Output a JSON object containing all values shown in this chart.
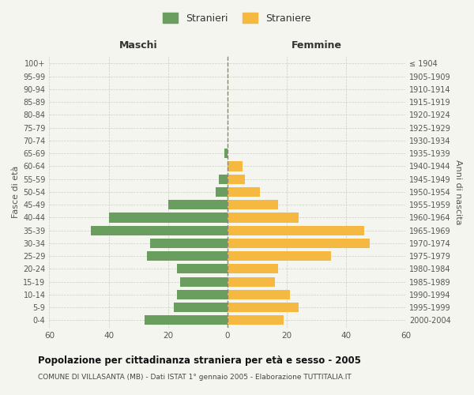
{
  "age_groups": [
    "0-4",
    "5-9",
    "10-14",
    "15-19",
    "20-24",
    "25-29",
    "30-34",
    "35-39",
    "40-44",
    "45-49",
    "50-54",
    "55-59",
    "60-64",
    "65-69",
    "70-74",
    "75-79",
    "80-84",
    "85-89",
    "90-94",
    "95-99",
    "100+"
  ],
  "birth_years": [
    "2000-2004",
    "1995-1999",
    "1990-1994",
    "1985-1989",
    "1980-1984",
    "1975-1979",
    "1970-1974",
    "1965-1969",
    "1960-1964",
    "1955-1959",
    "1950-1954",
    "1945-1949",
    "1940-1944",
    "1935-1939",
    "1930-1934",
    "1925-1929",
    "1920-1924",
    "1915-1919",
    "1910-1914",
    "1905-1909",
    "≤ 1904"
  ],
  "males": [
    28,
    18,
    17,
    16,
    17,
    27,
    26,
    46,
    40,
    20,
    4,
    3,
    0,
    1,
    0,
    0,
    0,
    0,
    0,
    0,
    0
  ],
  "females": [
    19,
    24,
    21,
    16,
    17,
    35,
    48,
    46,
    24,
    17,
    11,
    6,
    5,
    0,
    0,
    0,
    0,
    0,
    0,
    0,
    0
  ],
  "male_color": "#6a9e5e",
  "female_color": "#f5b942",
  "background_color": "#f5f5f0",
  "grid_color": "#cccccc",
  "title": "Popolazione per cittadinanza straniera per età e sesso - 2005",
  "subtitle": "COMUNE DI VILLASANTA (MB) - Dati ISTAT 1° gennaio 2005 - Elaborazione TUTTITALIA.IT",
  "xlabel_left": "Maschi",
  "xlabel_right": "Femmine",
  "ylabel_left": "Fasce di età",
  "ylabel_right": "Anni di nascita",
  "legend_male": "Stranieri",
  "legend_female": "Straniere",
  "xlim": 60,
  "bar_height": 0.75
}
